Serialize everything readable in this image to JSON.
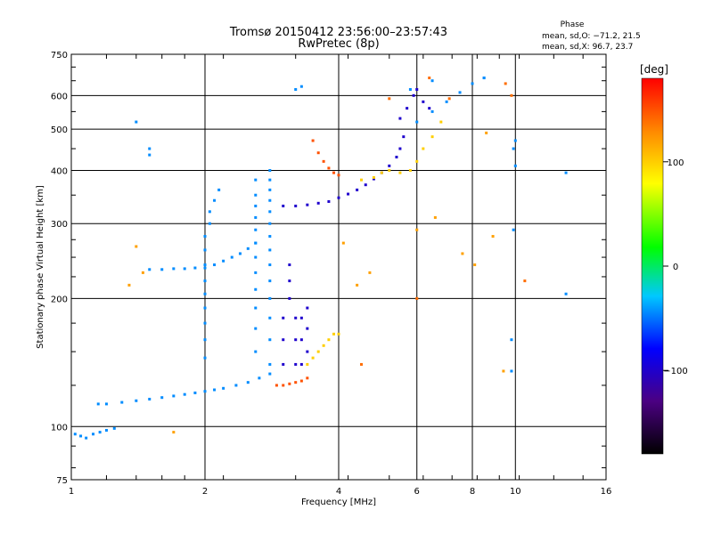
{
  "chart_data": {
    "type": "scatter",
    "title": "Tromsø 20150412 23:56:00–23:57:43",
    "subtitle": "RwPretec (8p)",
    "xlabel": "Frequency [MHz]",
    "ylabel": "Stationary phase Virtual Height [km]",
    "x_scale": "log",
    "y_scale": "log",
    "xlim": [
      1,
      16
    ],
    "ylim": [
      75,
      750
    ],
    "x_ticks": [
      1,
      2,
      4,
      6,
      8,
      10,
      16
    ],
    "x_tick_labels": [
      "1",
      "2",
      "4",
      "6",
      "8",
      "10",
      "16"
    ],
    "y_ticks": [
      75,
      100,
      200,
      300,
      400,
      500,
      600,
      750
    ],
    "y_tick_labels": [
      "75",
      "100",
      "200",
      "300",
      "400",
      "500",
      "600",
      "750"
    ],
    "grid": true,
    "phase_box": {
      "title": "Phase",
      "lines": [
        "mean, sd,O: −71.2, 21.5",
        "mean, sd,X:  96.7, 23.7"
      ]
    },
    "colorbar": {
      "label": "[deg]",
      "range": [
        -180,
        180
      ],
      "ticks": [
        100,
        0,
        -100
      ],
      "tick_labels": [
        "100",
        "0",
        "−100"
      ]
    },
    "series": [
      {
        "phase": -45,
        "points": [
          [
            1.02,
            96
          ],
          [
            1.05,
            95
          ],
          [
            1.08,
            94
          ],
          [
            1.12,
            96
          ],
          [
            1.16,
            97
          ],
          [
            1.2,
            98
          ],
          [
            1.25,
            99
          ]
        ]
      },
      {
        "phase": -45,
        "points": [
          [
            1.15,
            113
          ],
          [
            1.2,
            113
          ],
          [
            1.3,
            114
          ],
          [
            1.4,
            115
          ],
          [
            1.5,
            116
          ],
          [
            1.6,
            117
          ],
          [
            1.7,
            118
          ],
          [
            1.8,
            119
          ],
          [
            1.9,
            120
          ],
          [
            2.0,
            121
          ],
          [
            2.1,
            122
          ],
          [
            2.2,
            123
          ],
          [
            2.35,
            125
          ],
          [
            2.5,
            127
          ],
          [
            2.65,
            130
          ],
          [
            2.8,
            133
          ]
        ]
      },
      {
        "phase": -45,
        "points": [
          [
            1.5,
            234
          ],
          [
            1.6,
            234
          ],
          [
            1.7,
            235
          ],
          [
            1.8,
            235
          ],
          [
            1.9,
            236
          ],
          [
            2.0,
            236
          ],
          [
            2.1,
            240
          ],
          [
            2.2,
            245
          ],
          [
            2.3,
            250
          ],
          [
            2.4,
            255
          ],
          [
            2.5,
            262
          ],
          [
            2.6,
            270
          ]
        ]
      },
      {
        "phase": -45,
        "points": [
          [
            2.0,
            145
          ],
          [
            2.0,
            160
          ],
          [
            2.0,
            175
          ],
          [
            2.0,
            190
          ],
          [
            2.0,
            205
          ],
          [
            2.0,
            220
          ],
          [
            2.0,
            240
          ],
          [
            2.0,
            260
          ],
          [
            2.0,
            280
          ],
          [
            2.05,
            300
          ],
          [
            2.05,
            320
          ],
          [
            2.1,
            340
          ],
          [
            2.15,
            360
          ]
        ]
      },
      {
        "phase": -45,
        "points": [
          [
            2.6,
            150
          ],
          [
            2.6,
            170
          ],
          [
            2.6,
            190
          ],
          [
            2.6,
            210
          ],
          [
            2.6,
            230
          ],
          [
            2.6,
            250
          ],
          [
            2.6,
            270
          ],
          [
            2.6,
            290
          ],
          [
            2.6,
            310
          ],
          [
            2.6,
            330
          ],
          [
            2.6,
            350
          ],
          [
            2.6,
            380
          ]
        ]
      },
      {
        "phase": -45,
        "points": [
          [
            2.8,
            140
          ],
          [
            2.8,
            160
          ],
          [
            2.8,
            180
          ],
          [
            2.8,
            200
          ],
          [
            2.8,
            220
          ],
          [
            2.8,
            240
          ],
          [
            2.8,
            260
          ],
          [
            2.8,
            280
          ],
          [
            2.8,
            300
          ],
          [
            2.8,
            320
          ],
          [
            2.8,
            340
          ],
          [
            2.8,
            360
          ],
          [
            2.8,
            380
          ],
          [
            2.8,
            400
          ]
        ]
      },
      {
        "phase": -100,
        "points": [
          [
            3.0,
            330
          ],
          [
            3.2,
            330
          ],
          [
            3.4,
            332
          ],
          [
            3.6,
            335
          ],
          [
            3.8,
            338
          ],
          [
            4.0,
            345
          ],
          [
            4.2,
            352
          ],
          [
            4.4,
            360
          ],
          [
            4.6,
            370
          ],
          [
            4.8,
            382
          ],
          [
            5.0,
            395
          ],
          [
            5.2,
            410
          ],
          [
            5.4,
            430
          ],
          [
            5.5,
            450
          ],
          [
            5.6,
            480
          ]
        ]
      },
      {
        "phase": -100,
        "points": [
          [
            3.0,
            140
          ],
          [
            3.0,
            160
          ],
          [
            3.0,
            180
          ],
          [
            3.1,
            200
          ],
          [
            3.1,
            220
          ],
          [
            3.1,
            240
          ],
          [
            3.2,
            140
          ],
          [
            3.2,
            160
          ],
          [
            3.2,
            180
          ],
          [
            3.3,
            140
          ],
          [
            3.3,
            160
          ],
          [
            3.3,
            180
          ],
          [
            3.4,
            150
          ],
          [
            3.4,
            170
          ],
          [
            3.4,
            190
          ]
        ]
      },
      {
        "phase": 100,
        "points": [
          [
            3.4,
            140
          ],
          [
            3.5,
            145
          ],
          [
            3.6,
            150
          ],
          [
            3.7,
            155
          ],
          [
            3.8,
            160
          ],
          [
            3.9,
            165
          ],
          [
            4.0,
            165
          ]
        ]
      },
      {
        "phase": 150,
        "points": [
          [
            2.9,
            125
          ],
          [
            3.0,
            125
          ],
          [
            3.1,
            126
          ],
          [
            3.2,
            127
          ],
          [
            3.3,
            128
          ],
          [
            3.4,
            130
          ]
        ]
      },
      {
        "phase": 150,
        "points": [
          [
            3.5,
            470
          ],
          [
            3.6,
            440
          ],
          [
            3.7,
            420
          ],
          [
            3.8,
            405
          ],
          [
            3.9,
            395
          ],
          [
            4.0,
            390
          ]
        ]
      },
      {
        "phase": 100,
        "points": [
          [
            4.5,
            380
          ],
          [
            4.8,
            385
          ],
          [
            5.0,
            395
          ],
          [
            5.2,
            400
          ],
          [
            5.5,
            395
          ],
          [
            5.8,
            400
          ],
          [
            6.0,
            420
          ],
          [
            6.2,
            450
          ],
          [
            6.5,
            480
          ],
          [
            6.8,
            520
          ]
        ]
      },
      {
        "phase": -100,
        "points": [
          [
            5.5,
            530
          ],
          [
            5.7,
            560
          ],
          [
            5.9,
            600
          ],
          [
            6.0,
            620
          ],
          [
            6.2,
            580
          ],
          [
            6.4,
            560
          ]
        ]
      },
      {
        "phase": -45,
        "points": [
          [
            6.0,
            520
          ],
          [
            6.5,
            550
          ],
          [
            7.0,
            580
          ],
          [
            7.5,
            610
          ],
          [
            8.0,
            640
          ],
          [
            8.5,
            660
          ]
        ]
      },
      {
        "phase": -45,
        "points": [
          [
            1.4,
            520
          ],
          [
            1.5,
            450
          ],
          [
            1.5,
            435
          ],
          [
            3.2,
            620
          ],
          [
            3.3,
            630
          ],
          [
            5.8,
            620
          ],
          [
            6.5,
            650
          ],
          [
            8.5,
            660
          ]
        ]
      },
      {
        "phase": 140,
        "points": [
          [
            5.2,
            590
          ],
          [
            6.4,
            660
          ],
          [
            7.1,
            590
          ],
          [
            9.5,
            640
          ],
          [
            9.8,
            600
          ],
          [
            6.0,
            200
          ],
          [
            4.5,
            140
          ],
          [
            10.5,
            220
          ]
        ]
      },
      {
        "phase": -45,
        "points": [
          [
            9.8,
            160
          ],
          [
            9.8,
            135
          ],
          [
            9.9,
            290
          ],
          [
            10.0,
            410
          ],
          [
            9.9,
            450
          ],
          [
            13.0,
            395
          ],
          [
            13.0,
            205
          ],
          [
            10.0,
            470
          ]
        ]
      },
      {
        "phase": 120,
        "points": [
          [
            1.4,
            265
          ],
          [
            1.45,
            230
          ],
          [
            1.35,
            215
          ],
          [
            1.7,
            97
          ],
          [
            4.1,
            270
          ],
          [
            4.4,
            215
          ],
          [
            4.7,
            230
          ],
          [
            6.0,
            290
          ],
          [
            6.6,
            310
          ],
          [
            7.6,
            255
          ],
          [
            8.6,
            490
          ],
          [
            9.4,
            135
          ],
          [
            8.9,
            280
          ],
          [
            8.1,
            240
          ]
        ]
      }
    ]
  }
}
